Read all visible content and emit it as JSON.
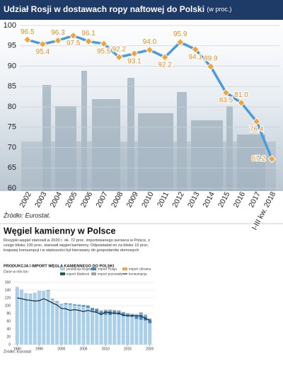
{
  "chart_data": [
    {
      "type": "line",
      "title": "Udział Rosji w dostawach ropy naftowej do Polski",
      "subtitle": "(w proc.)",
      "source": "Źródło: Eurostat.",
      "categories": [
        "2002",
        "2003",
        "2004",
        "2005",
        "2006",
        "2007",
        "2008",
        "2009",
        "2010",
        "2011",
        "2012",
        "2013",
        "2014",
        "2015",
        "2016",
        "2017",
        "I-III kw. 2018"
      ],
      "values": [
        96.5,
        95.4,
        96.3,
        97.5,
        96.1,
        95.5,
        92.2,
        93.1,
        94.0,
        92.2,
        95.9,
        94.1,
        89.9,
        83.5,
        81.0,
        76.4,
        67.2
      ],
      "value_labels": [
        "96.5",
        "95.4",
        "96.3",
        "97.5",
        "96.1",
        "95.5",
        "92.2",
        "93.1",
        "94.0",
        "92.2",
        "95.9",
        "94.1",
        "89.9",
        "83.5",
        "81.0",
        "76.4",
        "67.2"
      ],
      "color": "#4a9bd8",
      "marker_color": "#f2a33a",
      "ylim": [
        60,
        100
      ],
      "yticks": [
        60,
        65,
        70,
        75,
        80,
        85,
        90,
        95,
        100
      ],
      "grid": true
    },
    {
      "type": "stacked_bar",
      "heading": "Węgiel kamienny w Polsce",
      "description": "Rosyjski węgiel stanowił w 2020 r. ok. 72 proc. importowanego surowca w Polsce, z czego blisko 100 proc. stanowił węgiel kamienny. Odpowiadał on za blisko 15 proc. krajowej konsumpcji i w większości był kierowany do gospodarstw domowych",
      "title": "PRODUKCJA I IMPORT WĘGLA KAMIENNEGO DO POLSKI",
      "subtitle": "Dane w mln ton",
      "source": "Źródło: Eurostat",
      "x": [
        1990,
        1991,
        1992,
        1993,
        1994,
        1995,
        1996,
        1997,
        1998,
        1999,
        2000,
        2001,
        2002,
        2003,
        2004,
        2005,
        2006,
        2007,
        2008,
        2009,
        2010,
        2011,
        2012,
        2013,
        2014,
        2015,
        2016,
        2017,
        2018,
        2019,
        2020
      ],
      "series": [
        {
          "name": "produkcja krajowa",
          "color": "#a9cfe9",
          "type": "bar",
          "values": [
            147,
            140,
            131,
            130,
            132,
            137,
            137,
            138,
            116,
            110,
            103,
            104,
            103,
            101,
            100,
            98,
            95,
            88,
            84,
            78,
            77,
            76,
            79,
            77,
            73,
            72,
            71,
            66,
            64,
            62,
            55
          ]
        },
        {
          "name": "import Rosja",
          "color": "#3f86bf",
          "type": "bar",
          "values": [
            0,
            0,
            0,
            0,
            0,
            0,
            0,
            1,
            1,
            1,
            1,
            2,
            2,
            2,
            2,
            3,
            4,
            5,
            6,
            7,
            9,
            10,
            7,
            8,
            8,
            6,
            5,
            8,
            13,
            10,
            8
          ]
        },
        {
          "name": "import Ukraina",
          "color": "#e8a25a",
          "type": "bar",
          "values": [
            0,
            0,
            0,
            0,
            0,
            0,
            0,
            0,
            0,
            0,
            0,
            0,
            0,
            0,
            0,
            0,
            0,
            0,
            0,
            0,
            0,
            0,
            0,
            0,
            0,
            0,
            0,
            0,
            0,
            0,
            0
          ]
        },
        {
          "name": "import Białoruś",
          "color": "#1f5a5a",
          "type": "bar",
          "values": [
            0,
            0,
            0,
            0,
            0,
            0,
            0,
            0,
            0,
            0,
            0,
            0,
            0,
            0,
            0,
            0,
            0,
            0,
            0,
            0,
            0,
            0,
            0,
            0,
            0,
            0,
            0,
            0,
            0,
            0,
            0
          ]
        },
        {
          "name": "import pozostały",
          "color": "#9aa3a8",
          "type": "bar",
          "values": [
            1,
            1,
            1,
            1,
            1,
            1,
            1,
            1,
            1,
            1,
            1,
            1,
            1,
            1,
            1,
            1,
            2,
            2,
            3,
            3,
            4,
            4,
            3,
            3,
            3,
            3,
            3,
            4,
            6,
            5,
            4
          ]
        },
        {
          "name": "konsumpcja",
          "color": "#1b2b38",
          "type": "line",
          "values": [
            120,
            118,
            115,
            114,
            112,
            113,
            118,
            113,
            107,
            102,
            93,
            92,
            88,
            90,
            88,
            85,
            88,
            85,
            83,
            77,
            84,
            82,
            80,
            80,
            76,
            74,
            75,
            74,
            74,
            67,
            63
          ]
        }
      ],
      "xlim": [
        1989,
        2021
      ],
      "xticks": [
        1990,
        1995,
        2000,
        2005,
        2010,
        2015,
        2020
      ],
      "ylim": [
        0,
        160
      ],
      "yticks": [
        0,
        20,
        40,
        60,
        80,
        100,
        120,
        140,
        160
      ],
      "grid": true
    }
  ]
}
